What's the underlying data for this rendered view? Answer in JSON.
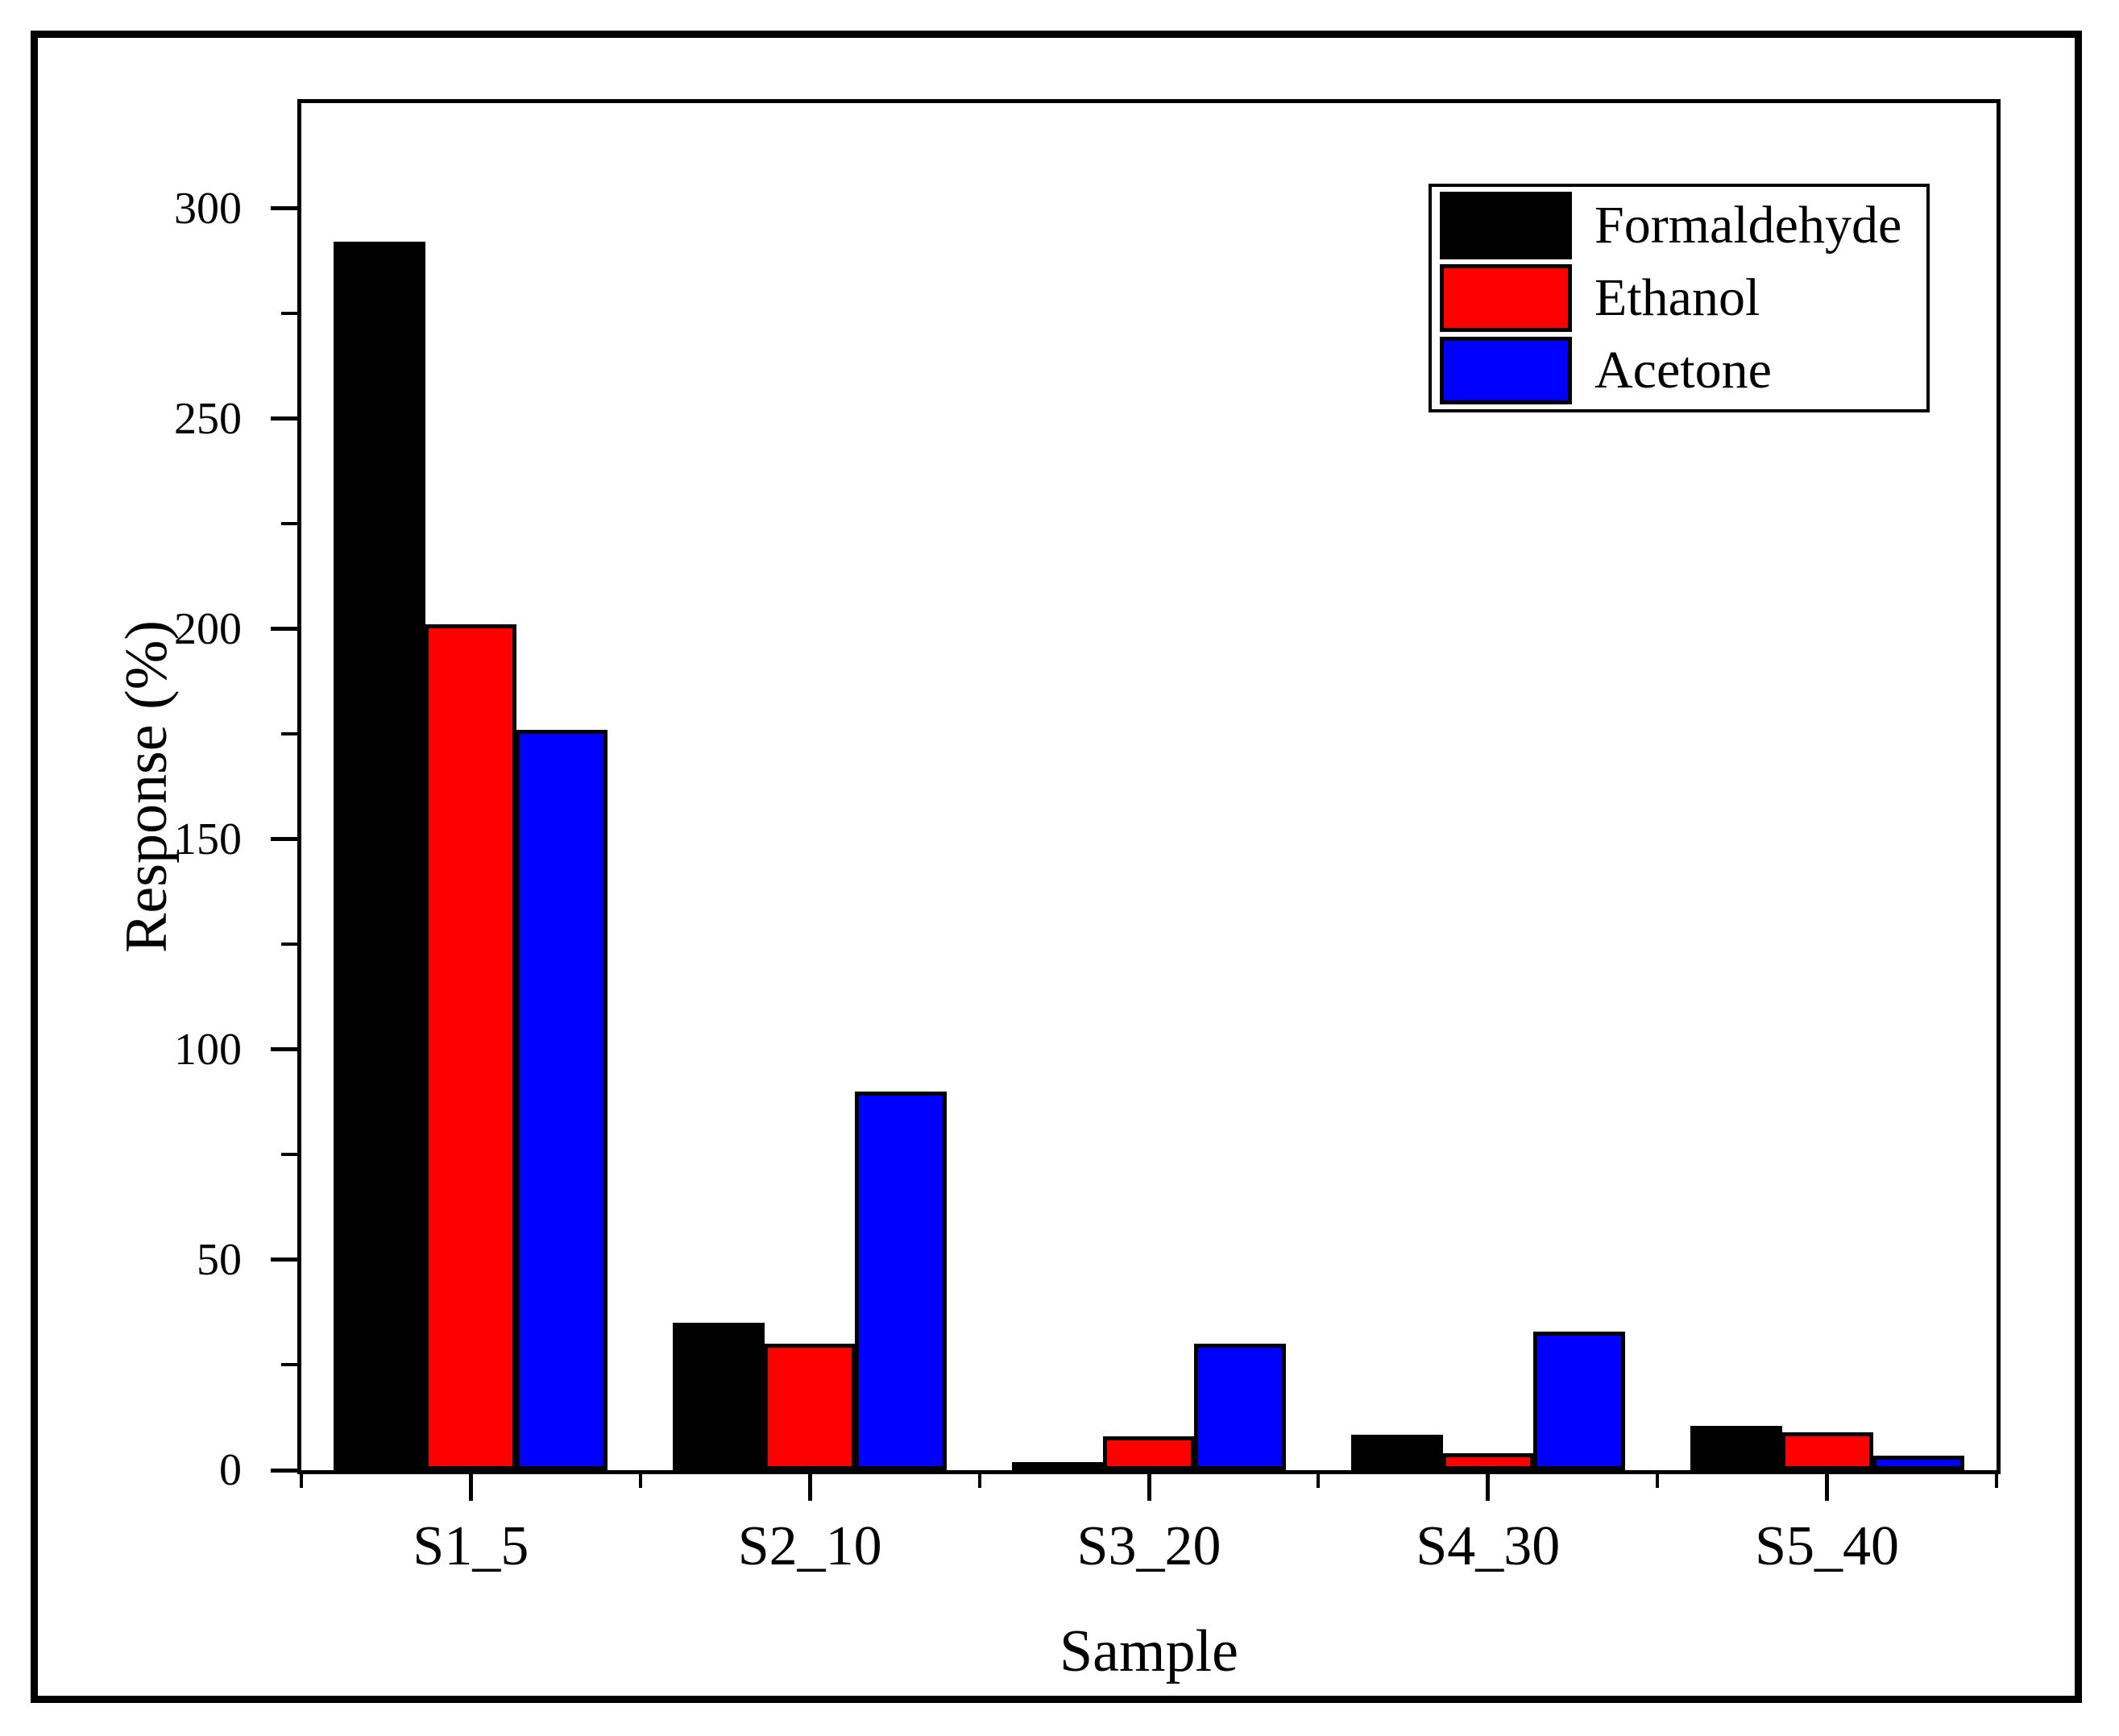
{
  "chart_data": {
    "type": "bar",
    "title": "",
    "categories": [
      "S1_5",
      "S2_10",
      "S3_20",
      "S4_30",
      "S5_40"
    ],
    "series": [
      {
        "name": "Formaldehyde",
        "color": "#000000",
        "values": [
          292,
          35,
          2,
          8.5,
          10.5
        ]
      },
      {
        "name": "Ethanol",
        "color": "#ff0000",
        "values": [
          201,
          30,
          8,
          4,
          9
        ]
      },
      {
        "name": "Acetone",
        "color": "#0000ff",
        "values": [
          176,
          90,
          30,
          33,
          3.5
        ]
      }
    ],
    "xlabel": "Sample",
    "ylabel": "Response (%)",
    "ylim": [
      0,
      325
    ],
    "yticks_major": [
      0,
      50,
      100,
      150,
      200,
      250,
      300
    ],
    "ytick_minor_step": 25,
    "bar_outline_color": "#000000",
    "legend_position": "top-right",
    "grid": false
  }
}
